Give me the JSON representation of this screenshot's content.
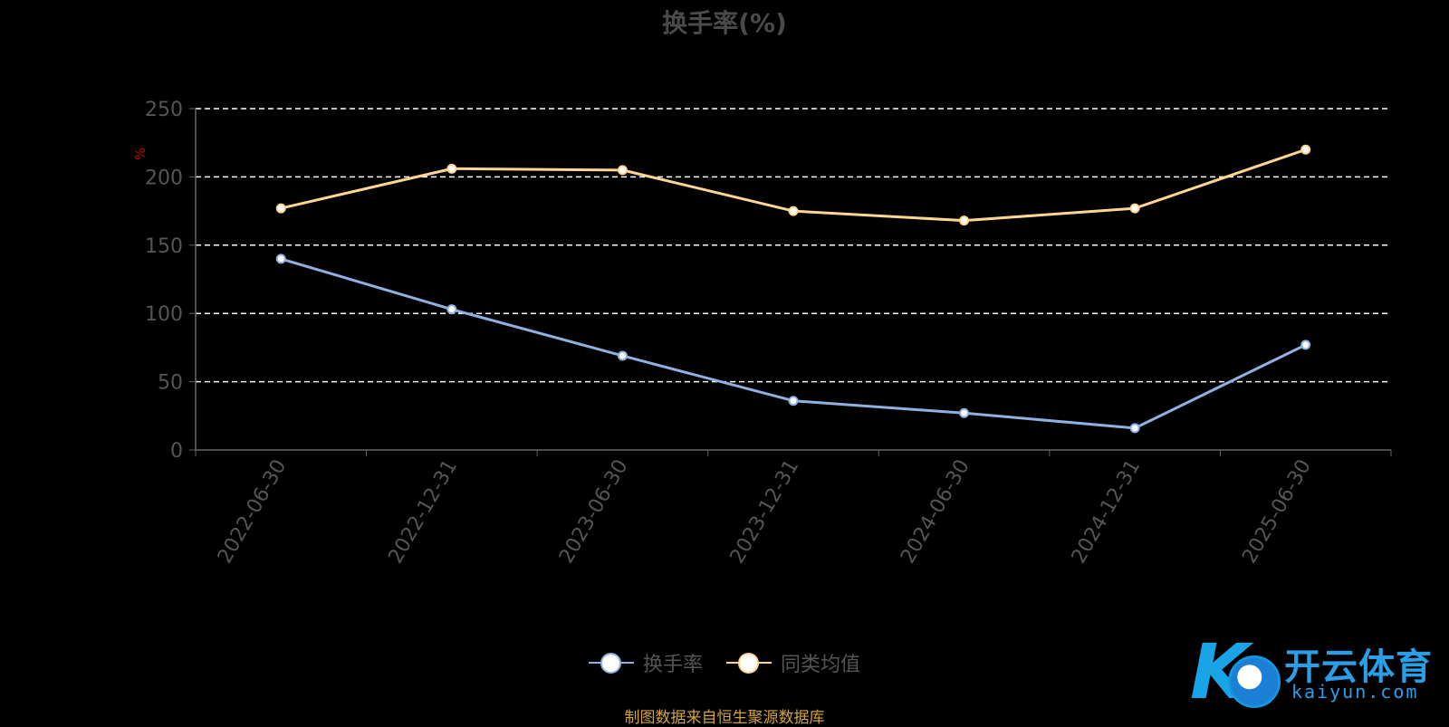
{
  "chart_data": {
    "type": "line",
    "title": "换手率(%)",
    "ylabel": "%",
    "xlabel": "",
    "categories": [
      "2022-06-30",
      "2022-12-31",
      "2023-06-30",
      "2023-12-31",
      "2024-06-30",
      "2024-12-31",
      "2025-06-30"
    ],
    "ylim": [
      0,
      250
    ],
    "yticks": [
      0,
      50,
      100,
      150,
      200,
      250
    ],
    "grid": true,
    "legend_position": "bottom-center",
    "series": [
      {
        "name": "换手率",
        "color": "#8fb0e0",
        "values": [
          140,
          103,
          69,
          36,
          27,
          16,
          77
        ]
      },
      {
        "name": "同类均值",
        "color": "#ffd591",
        "values": [
          177,
          206,
          205,
          175,
          168,
          177,
          220
        ]
      }
    ]
  },
  "colors": {
    "background": "#000000",
    "grid": "#ffffff",
    "axis": "#666666",
    "ylabel": "#cc0000",
    "source": "#d4a23b"
  },
  "source_note": "制图数据来自恒生聚源数据库",
  "logo": {
    "cn": "开云体育",
    "en": "kaiyun.com",
    "mark": "K"
  }
}
